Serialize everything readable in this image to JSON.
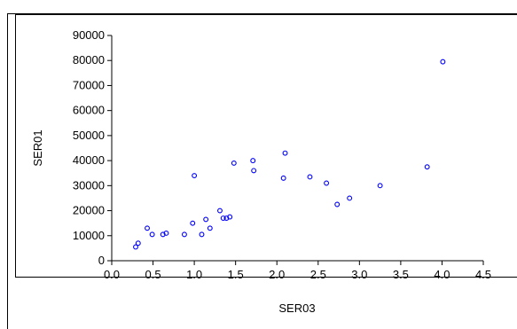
{
  "chart_data": {
    "type": "scatter",
    "xlabel": "SER03",
    "ylabel": "SER01",
    "xlim": [
      0.0,
      4.5
    ],
    "ylim": [
      0,
      90000
    ],
    "x_ticks": [
      "0.0",
      "0.5",
      "1.0",
      "1.5",
      "2.0",
      "2.5",
      "3.0",
      "3.5",
      "4.0",
      "4.5"
    ],
    "y_ticks": [
      "0",
      "10000",
      "20000",
      "30000",
      "40000",
      "50000",
      "60000",
      "70000",
      "80000",
      "90000"
    ],
    "grid": false,
    "marker_color": "#0000ff",
    "points": [
      {
        "x": 0.29,
        "y": 5500
      },
      {
        "x": 0.32,
        "y": 7000
      },
      {
        "x": 0.43,
        "y": 13000
      },
      {
        "x": 0.49,
        "y": 10500
      },
      {
        "x": 0.62,
        "y": 10500
      },
      {
        "x": 0.66,
        "y": 11000
      },
      {
        "x": 0.88,
        "y": 10500
      },
      {
        "x": 0.98,
        "y": 15000
      },
      {
        "x": 1.0,
        "y": 34000
      },
      {
        "x": 1.09,
        "y": 10500
      },
      {
        "x": 1.14,
        "y": 16500
      },
      {
        "x": 1.19,
        "y": 13000
      },
      {
        "x": 1.31,
        "y": 20000
      },
      {
        "x": 1.35,
        "y": 17000
      },
      {
        "x": 1.39,
        "y": 17000
      },
      {
        "x": 1.43,
        "y": 17500
      },
      {
        "x": 1.48,
        "y": 39000
      },
      {
        "x": 1.71,
        "y": 40000
      },
      {
        "x": 1.72,
        "y": 36000
      },
      {
        "x": 2.08,
        "y": 33000
      },
      {
        "x": 2.1,
        "y": 43000
      },
      {
        "x": 2.4,
        "y": 33500
      },
      {
        "x": 2.6,
        "y": 31000
      },
      {
        "x": 2.73,
        "y": 22500
      },
      {
        "x": 2.88,
        "y": 25000
      },
      {
        "x": 3.25,
        "y": 30000
      },
      {
        "x": 3.82,
        "y": 37500
      },
      {
        "x": 4.01,
        "y": 79500
      }
    ]
  }
}
